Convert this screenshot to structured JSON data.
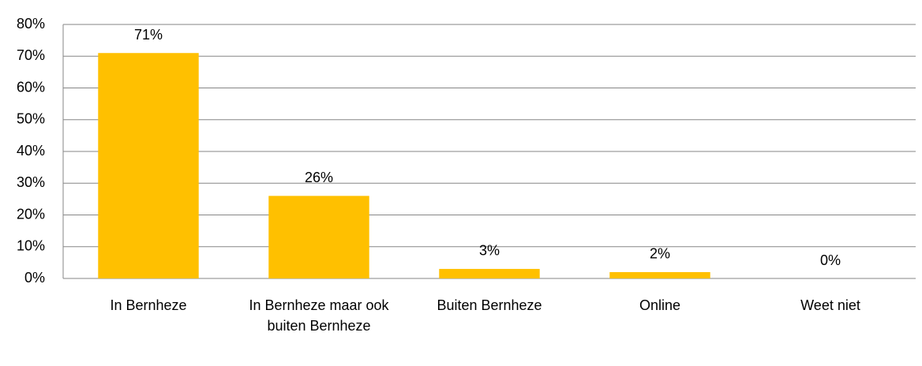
{
  "chart_data": {
    "type": "bar",
    "categories": [
      "In Bernheze",
      "In Bernheze maar ook buiten Bernheze",
      "Buiten Bernheze",
      "Online",
      "Weet niet"
    ],
    "values": [
      71,
      26,
      3,
      2,
      0
    ],
    "value_labels": [
      "71%",
      "26%",
      "3%",
      "2%",
      "0%"
    ],
    "color": "#ffc000",
    "ylim": [
      0,
      80
    ],
    "yticks": [
      {
        "value": 0,
        "label": "0%"
      },
      {
        "value": 10,
        "label": "10%"
      },
      {
        "value": 20,
        "label": "20%"
      },
      {
        "value": 30,
        "label": "30%"
      },
      {
        "value": 40,
        "label": "40%"
      },
      {
        "value": 50,
        "label": "50%"
      },
      {
        "value": 60,
        "label": "60%"
      },
      {
        "value": 70,
        "label": "70%"
      },
      {
        "value": 80,
        "label": "80%"
      }
    ],
    "grid": true
  }
}
